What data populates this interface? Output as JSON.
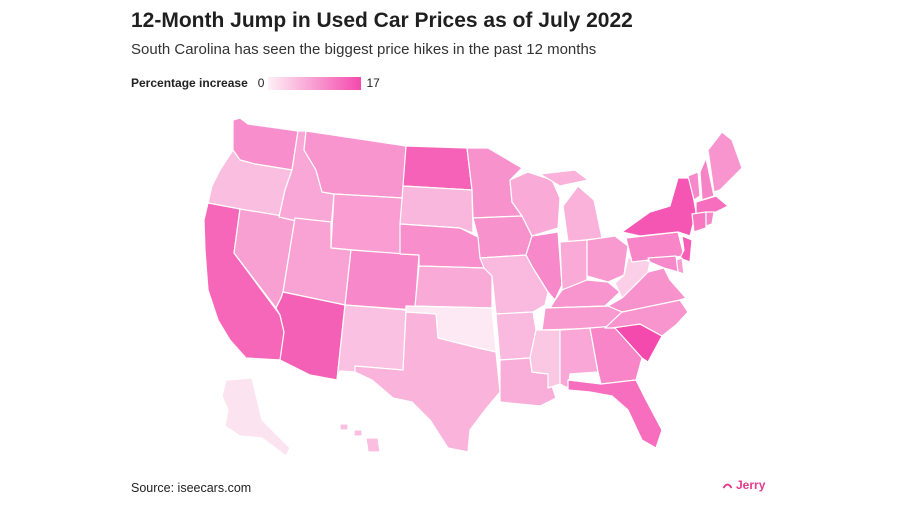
{
  "header": {
    "title": "12-Month Jump in Used Car Prices as of July 2022",
    "subtitle": "South Carolina has seen the biggest price hikes in the past 12 months"
  },
  "legend": {
    "label": "Percentage increase",
    "min": "0",
    "max": "17",
    "color_min": "#fdf0f6",
    "color_max": "#f449ad"
  },
  "map": {
    "stroke_color": "#ffffff",
    "states": [
      {
        "id": "WA",
        "level": 0.58
      },
      {
        "id": "OR",
        "level": 0.3
      },
      {
        "id": "CA",
        "level": 0.82
      },
      {
        "id": "NV",
        "level": 0.48
      },
      {
        "id": "ID",
        "level": 0.44
      },
      {
        "id": "MT",
        "level": 0.55
      },
      {
        "id": "WY",
        "level": 0.5
      },
      {
        "id": "UT",
        "level": 0.46
      },
      {
        "id": "AZ",
        "level": 0.86
      },
      {
        "id": "CO",
        "level": 0.62
      },
      {
        "id": "NM",
        "level": 0.28
      },
      {
        "id": "ND",
        "level": 0.85
      },
      {
        "id": "SD",
        "level": 0.34
      },
      {
        "id": "NE",
        "level": 0.58
      },
      {
        "id": "KS",
        "level": 0.42
      },
      {
        "id": "OK",
        "level": 0.04
      },
      {
        "id": "TX",
        "level": 0.36
      },
      {
        "id": "MN",
        "level": 0.56
      },
      {
        "id": "IA",
        "level": 0.56
      },
      {
        "id": "MO",
        "level": 0.33
      },
      {
        "id": "AR",
        "level": 0.33
      },
      {
        "id": "LA",
        "level": 0.4
      },
      {
        "id": "WI",
        "level": 0.42
      },
      {
        "id": "IL",
        "level": 0.62
      },
      {
        "id": "MI",
        "level": 0.38
      },
      {
        "id": "IN",
        "level": 0.42
      },
      {
        "id": "OH",
        "level": 0.52
      },
      {
        "id": "KY",
        "level": 0.55
      },
      {
        "id": "TN",
        "level": 0.52
      },
      {
        "id": "MS",
        "level": 0.24
      },
      {
        "id": "AL",
        "level": 0.44
      },
      {
        "id": "GA",
        "level": 0.64
      },
      {
        "id": "FL",
        "level": 0.78
      },
      {
        "id": "SC",
        "level": 1.0
      },
      {
        "id": "NC",
        "level": 0.55
      },
      {
        "id": "VA",
        "level": 0.56
      },
      {
        "id": "WV",
        "level": 0.2
      },
      {
        "id": "PA",
        "level": 0.64
      },
      {
        "id": "NY",
        "level": 0.92
      },
      {
        "id": "VT",
        "level": 0.62
      },
      {
        "id": "NH",
        "level": 0.65
      },
      {
        "id": "ME",
        "level": 0.55
      },
      {
        "id": "MA",
        "level": 0.78
      },
      {
        "id": "CT",
        "level": 0.72
      },
      {
        "id": "RI",
        "level": 0.64
      },
      {
        "id": "NJ",
        "level": 0.88
      },
      {
        "id": "DE",
        "level": 0.5
      },
      {
        "id": "MD",
        "level": 0.62
      },
      {
        "id": "AK",
        "level": 0.08
      },
      {
        "id": "HI",
        "level": 0.3
      }
    ]
  },
  "footer": {
    "source": "Source: iseecars.com",
    "brand": "Jerry"
  }
}
